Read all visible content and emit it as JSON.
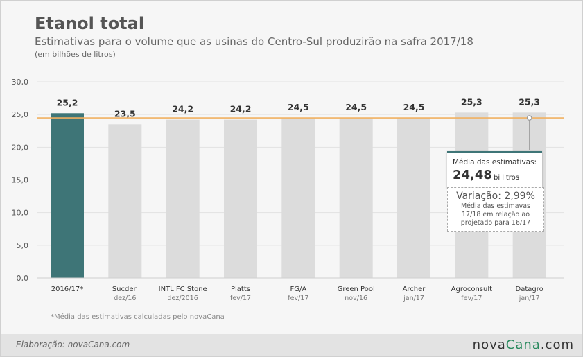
{
  "header": {
    "title": "Etanol total",
    "subtitle": "Estimativas para o volume que as usinas do Centro-Sul produzirão na safra 2017/18",
    "unit": "(em bilhões de litros)"
  },
  "chart_data": {
    "type": "bar",
    "categories": [
      "2016/17*",
      "Sucden",
      "INTL FC Stone",
      "Platts",
      "FG/A",
      "Green Pool",
      "Archer",
      "Agroconsult",
      "Datagro"
    ],
    "sub_labels": [
      "",
      "dez/16",
      "dez/2016",
      "fev/17",
      "fev/17",
      "nov/16",
      "jan/17",
      "fev/17",
      "jan/17"
    ],
    "values": [
      25.2,
      23.5,
      24.2,
      24.2,
      24.5,
      24.5,
      24.5,
      25.3,
      25.3
    ],
    "value_labels": [
      "25,2",
      "23,5",
      "24,2",
      "24,2",
      "24,5",
      "24,5",
      "24,5",
      "25,3",
      "25,3"
    ],
    "ylim": [
      0,
      30
    ],
    "yticks": [
      "0,0",
      "5,0",
      "10,0",
      "15,0",
      "20,0",
      "25,0",
      "30,0"
    ],
    "reference_line": {
      "value": 24.48
    },
    "highlight_index": 0,
    "colors": {
      "highlight": "#3e7577",
      "bar": "#dcdcdc",
      "reference": "#f0b060",
      "grid": "#e2e2e2"
    },
    "grid": true
  },
  "callouts": {
    "average_label": "Média das estimativas:",
    "average_value": "24,48",
    "average_unit": "bi litros",
    "variation_title": "Variação: 2,99%",
    "variation_desc": [
      "Média das estimavas",
      "17/18 em relação ao",
      "projetado para 16/17"
    ]
  },
  "footnote": "*Média das estimativas calculadas pelo novaCana",
  "footer": {
    "credit": "Elaboração: novaCana.com",
    "logo_part1": "nova",
    "logo_part2": "Cana",
    "logo_part3": ".com"
  }
}
